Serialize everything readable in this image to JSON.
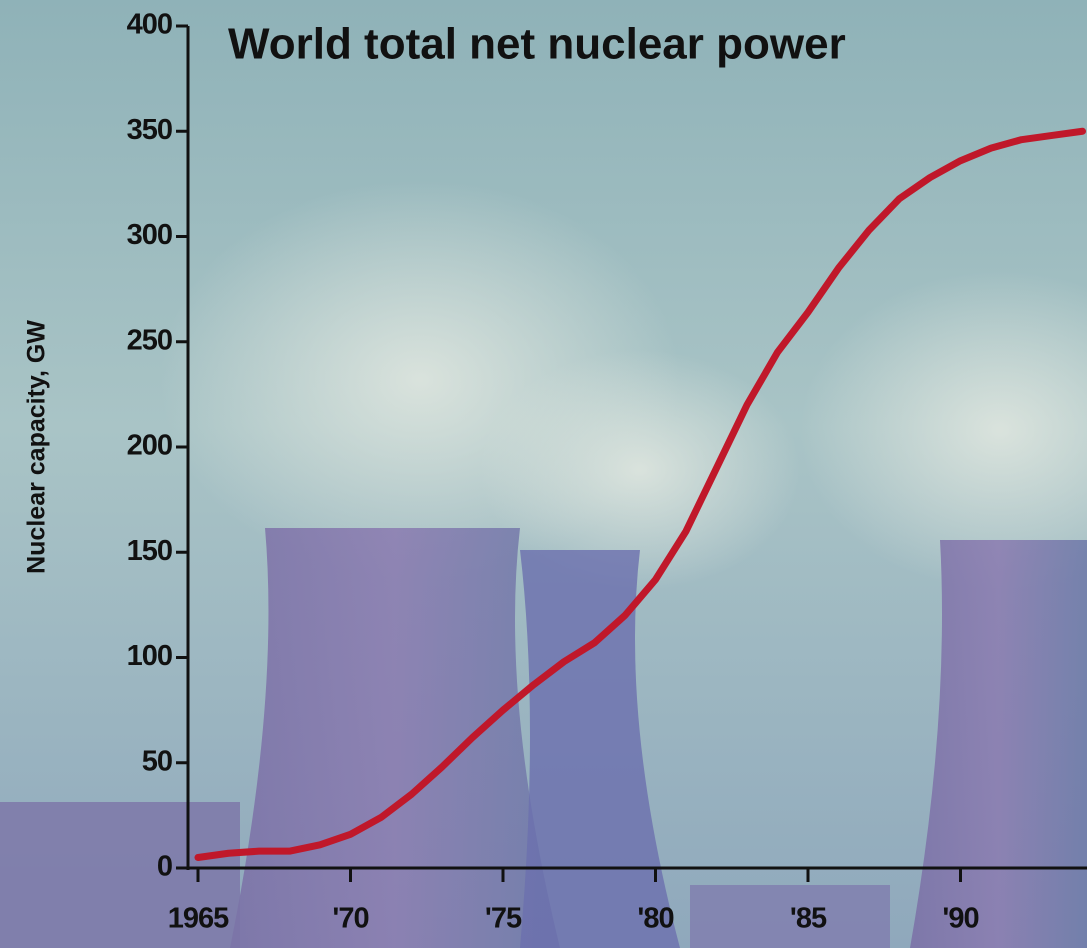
{
  "chart_data": {
    "type": "line",
    "title": "World total net nuclear power",
    "y_label": "Nuclear capacity, GW",
    "x": [
      1965,
      1966,
      1967,
      1968,
      1969,
      1970,
      1971,
      1972,
      1973,
      1974,
      1975,
      1976,
      1977,
      1978,
      1979,
      1980,
      1981,
      1982,
      1983,
      1984,
      1985,
      1986,
      1987,
      1988,
      1989,
      1990,
      1991,
      1992,
      1993,
      1994
    ],
    "series": [
      {
        "color": "#c0182a",
        "values": [
          5,
          7,
          8,
          8,
          11,
          16,
          24,
          35,
          48,
          62,
          75,
          87,
          98,
          107,
          120,
          137,
          160,
          190,
          220,
          245,
          264,
          285,
          303,
          318,
          328,
          336,
          342,
          346,
          348,
          350
        ]
      }
    ],
    "xlim": [
      1965,
      1994
    ],
    "xticks": [
      1965,
      {
        "value": 1970,
        "label": "'70"
      },
      {
        "value": 1975,
        "label": "'75"
      },
      {
        "value": 1980,
        "label": "'80"
      },
      {
        "value": 1985,
        "label": "'85"
      },
      {
        "value": 1990,
        "label": "'90"
      }
    ],
    "ylim": [
      0,
      400
    ],
    "yticks": [
      0,
      50,
      100,
      150,
      200,
      250,
      300,
      350,
      400
    ],
    "grid": false
  }
}
